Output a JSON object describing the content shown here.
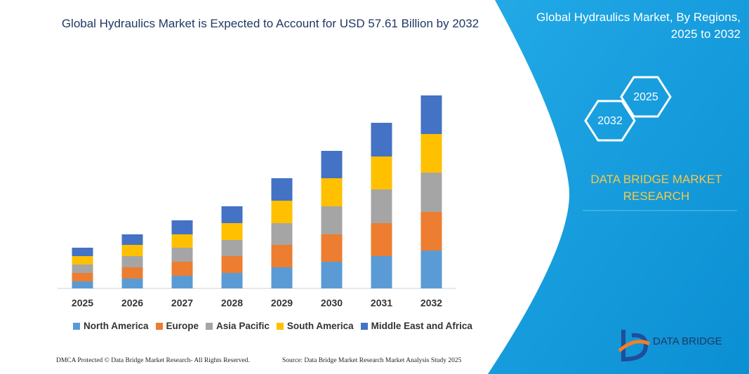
{
  "chart_data": {
    "type": "bar",
    "stacked": true,
    "title": "Global Hydraulics Market is Expected to Account for USD 57.61 Billion by 2032",
    "categories": [
      "2025",
      "2026",
      "2027",
      "2028",
      "2029",
      "2030",
      "2031",
      "2032"
    ],
    "series": [
      {
        "name": "North America",
        "color": "#5b9bd5",
        "values": [
          10,
          14,
          18,
          22,
          30,
          38,
          46,
          54
        ]
      },
      {
        "name": "Europe",
        "color": "#ed7d31",
        "values": [
          12,
          16,
          20,
          24,
          32,
          39,
          47,
          55
        ]
      },
      {
        "name": "Asia Pacific",
        "color": "#a5a5a5",
        "values": [
          12,
          16,
          20,
          23,
          31,
          40,
          48,
          56
        ]
      },
      {
        "name": "South America",
        "color": "#ffc000",
        "values": [
          12,
          16,
          19,
          24,
          32,
          40,
          47,
          55
        ]
      },
      {
        "name": "Middle East and Africa",
        "color": "#4472c4",
        "values": [
          12,
          15,
          20,
          24,
          32,
          39,
          48,
          55
        ]
      }
    ],
    "ylim": [
      0,
      300
    ]
  },
  "panel": {
    "title": "Global Hydraulics Market, By Regions, 2025 to 2032",
    "hexagons": [
      "2025",
      "2032"
    ],
    "brand": "DATA BRIDGE MARKET RESEARCH"
  },
  "logo": {
    "text": "DATA BRIDGE"
  },
  "footer": {
    "left": "DMCA Protected © Data Bridge Market Research- All Rights Reserved.",
    "right": "Source: Data Bridge Market Research Market Analysis Study 2025"
  }
}
